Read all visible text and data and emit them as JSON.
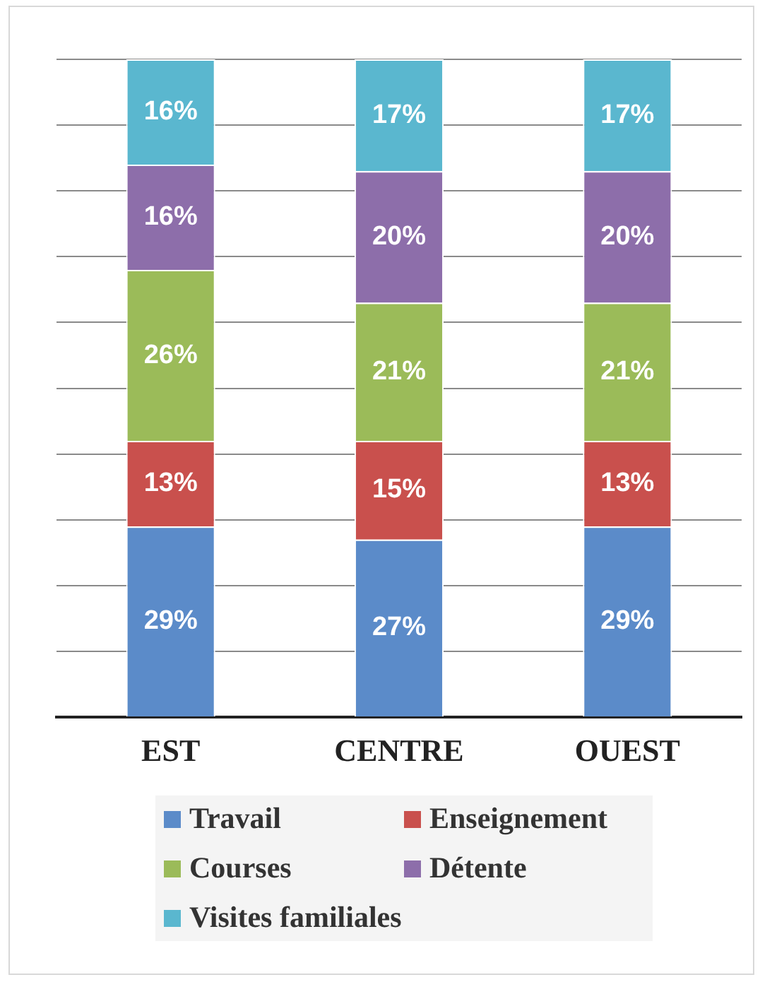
{
  "chart_data": {
    "type": "bar",
    "stacked": true,
    "categories": [
      "EST",
      "CENTRE",
      "OUEST"
    ],
    "series": [
      {
        "name": "Travail",
        "color": "#5b8bc9",
        "values": [
          29,
          27,
          29
        ],
        "value_labels": [
          "29%",
          "27%",
          "29%"
        ]
      },
      {
        "name": "Enseignement",
        "color": "#c9504d",
        "values": [
          13,
          15,
          13
        ],
        "value_labels": [
          "13%",
          "15%",
          "13%"
        ]
      },
      {
        "name": "Courses",
        "color": "#9bbb59",
        "values": [
          26,
          21,
          21
        ],
        "value_labels": [
          "26%",
          "21%",
          "21%"
        ]
      },
      {
        "name": "Détente",
        "color": "#8d6eaa",
        "values": [
          16,
          20,
          20
        ],
        "value_labels": [
          "16%",
          "20%",
          "20%"
        ]
      },
      {
        "name": "Visites familiales",
        "color": "#5ab7cf",
        "values": [
          16,
          17,
          17
        ],
        "value_labels": [
          "16%",
          "17%",
          "17%"
        ]
      }
    ],
    "ylim": [
      0,
      100
    ],
    "yticks": [
      {
        "value": 0,
        "label": null
      },
      {
        "value": 10,
        "label": null
      },
      {
        "value": 20,
        "label": null
      },
      {
        "value": 30,
        "label": null
      },
      {
        "value": 40,
        "label": null
      },
      {
        "value": 50,
        "label": null
      },
      {
        "value": 60,
        "label": null
      },
      {
        "value": 70,
        "label": null
      },
      {
        "value": 80,
        "label": null
      },
      {
        "value": 90,
        "label": null
      },
      {
        "value": 100,
        "label": null
      }
    ],
    "grid": "y",
    "legend": "bottom",
    "tick_labels": "x"
  }
}
